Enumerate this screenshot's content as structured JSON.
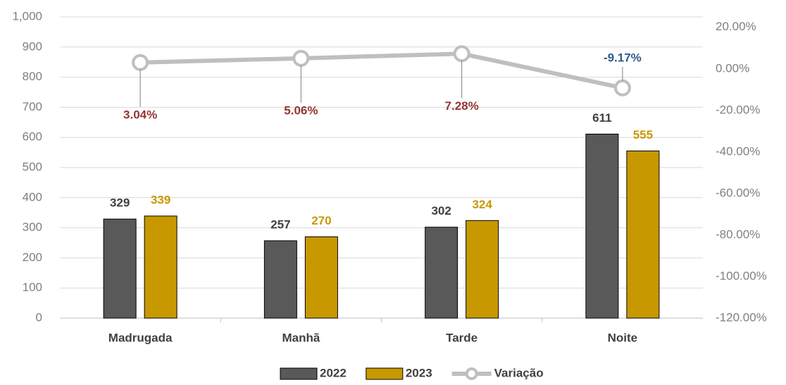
{
  "chart_data": {
    "type": "bar",
    "categories": [
      "Madrugada",
      "Manhã",
      "Tarde",
      "Noite"
    ],
    "series": [
      {
        "name": "2022",
        "color": "#595959",
        "label_color": "#404040",
        "values": [
          329,
          257,
          302,
          611
        ]
      },
      {
        "name": "2023",
        "color": "#c89800",
        "label_color": "#c89800",
        "values": [
          339,
          270,
          324,
          555
        ]
      },
      {
        "name": "Variação",
        "type": "line",
        "axis": "y2",
        "color": "#bfbfbf",
        "positive_label_color": "#943634",
        "negative_label_color": "#2e5c8a",
        "values": [
          3.04,
          5.06,
          7.28,
          -9.17
        ],
        "value_labels": [
          "3.04%",
          "5.06%",
          "7.28%",
          "-9.17%"
        ]
      }
    ],
    "ylim": [
      0,
      1000
    ],
    "yticks": [
      0,
      100,
      200,
      300,
      400,
      500,
      600,
      700,
      800,
      900,
      {
        "value": 1000,
        "label": "1,000"
      }
    ],
    "y2lim": [
      -120,
      25
    ],
    "y2ticks": [
      {
        "value": -120,
        "label": "-120.00%"
      },
      {
        "value": -100,
        "label": "-100.00%"
      },
      {
        "value": -80,
        "label": "-80.00%"
      },
      {
        "value": -60,
        "label": "-60.00%"
      },
      {
        "value": -40,
        "label": "-40.00%"
      },
      {
        "value": -20,
        "label": "-20.00%"
      },
      {
        "value": 0,
        "label": "0.00%"
      },
      {
        "value": 20,
        "label": "20.00%"
      }
    ],
    "grid": true,
    "legend": "bottom"
  }
}
